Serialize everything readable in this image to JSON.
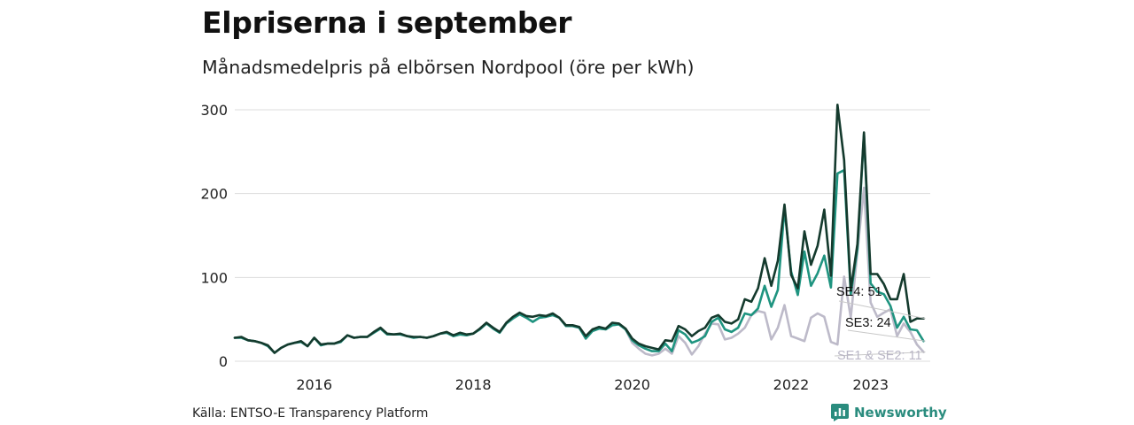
{
  "header": {
    "title": "Elpriserna i september",
    "subtitle": "Månadsmedelpris på elbörsen Nordpool (öre per kWh)"
  },
  "footer": {
    "source": "Källa: ENTSO-E Transparency Platform",
    "brand": "Newsworthy"
  },
  "icons": {
    "brand_logo": "bar-chart-icon"
  },
  "colors": {
    "SE4": "#143a2d",
    "SE3": "#1f9480",
    "SE1_SE2": "#bdbac9",
    "grid": "#dddddd",
    "brand": "#2a8c7e"
  },
  "chart_data": {
    "type": "line",
    "ylim": [
      0,
      300
    ],
    "yticks": [
      0,
      100,
      200,
      300
    ],
    "xlim": [
      2015.0,
      2023.75
    ],
    "xticks": [
      {
        "value": 2016.0,
        "label": "2016"
      },
      {
        "value": 2018.0,
        "label": "2018"
      },
      {
        "value": 2020.0,
        "label": "2020"
      },
      {
        "value": 2022.0,
        "label": "2022"
      },
      {
        "value": 2023.0,
        "label": "2023"
      }
    ],
    "x_start": 2015.0,
    "x_step": 0.0833333,
    "series": [
      {
        "name": "SE4",
        "key": "SE4",
        "color": "#143a2d",
        "end_label": "SE4: 51",
        "values": [
          28,
          29,
          25,
          24,
          22,
          19,
          10,
          16,
          20,
          22,
          24,
          18,
          28,
          20,
          21,
          21,
          24,
          31,
          28,
          29,
          29,
          35,
          40,
          33,
          32,
          33,
          30,
          29,
          29,
          28,
          30,
          33,
          35,
          31,
          34,
          32,
          33,
          39,
          46,
          40,
          35,
          46,
          53,
          58,
          54,
          53,
          55,
          54,
          57,
          52,
          43,
          43,
          41,
          30,
          38,
          41,
          39,
          46,
          45,
          39,
          27,
          21,
          18,
          16,
          14,
          25,
          24,
          42,
          38,
          30,
          36,
          40,
          52,
          55,
          47,
          45,
          50,
          74,
          71,
          87,
          123,
          90,
          120,
          187,
          103,
          87,
          155,
          115,
          138,
          181,
          102,
          306,
          240,
          85,
          140,
          273,
          104,
          104,
          92,
          74,
          74,
          104,
          47,
          51,
          51
        ]
      },
      {
        "name": "SE3",
        "key": "SE3",
        "color": "#1f9480",
        "end_label": "SE3: 24",
        "values": [
          28,
          28,
          25,
          24,
          22,
          18,
          10,
          16,
          20,
          22,
          23,
          18,
          28,
          19,
          21,
          21,
          23,
          31,
          28,
          29,
          29,
          34,
          39,
          32,
          32,
          32,
          30,
          28,
          29,
          28,
          30,
          33,
          34,
          30,
          32,
          31,
          33,
          38,
          45,
          39,
          34,
          45,
          51,
          56,
          52,
          47,
          52,
          53,
          55,
          52,
          42,
          42,
          40,
          27,
          36,
          39,
          38,
          43,
          44,
          38,
          25,
          19,
          15,
          12,
          12,
          21,
          12,
          37,
          32,
          22,
          25,
          30,
          47,
          52,
          38,
          35,
          40,
          57,
          55,
          63,
          90,
          65,
          85,
          182,
          107,
          79,
          131,
          90,
          105,
          126,
          88,
          224,
          228,
          80,
          134,
          271,
          93,
          83,
          80,
          66,
          40,
          53,
          38,
          37,
          24
        ]
      },
      {
        "name": "SE1 & SE2",
        "key": "SE1_SE2",
        "color": "#bdbac9",
        "end_label": "SE1 & SE2: 11",
        "values": [
          28,
          28,
          25,
          24,
          22,
          18,
          10,
          16,
          20,
          22,
          23,
          18,
          28,
          19,
          21,
          21,
          23,
          31,
          28,
          29,
          29,
          34,
          39,
          32,
          32,
          32,
          30,
          28,
          29,
          28,
          30,
          33,
          34,
          30,
          32,
          31,
          33,
          38,
          45,
          39,
          34,
          45,
          51,
          56,
          52,
          47,
          52,
          53,
          55,
          52,
          42,
          42,
          40,
          27,
          36,
          39,
          38,
          43,
          44,
          38,
          22,
          15,
          9,
          7,
          9,
          15,
          9,
          30,
          22,
          8,
          18,
          33,
          45,
          44,
          26,
          28,
          33,
          40,
          55,
          60,
          58,
          26,
          40,
          67,
          30,
          27,
          24,
          52,
          57,
          53,
          23,
          20,
          101,
          52,
          130,
          207,
          70,
          53,
          58,
          62,
          30,
          45,
          35,
          20,
          11
        ]
      }
    ]
  }
}
